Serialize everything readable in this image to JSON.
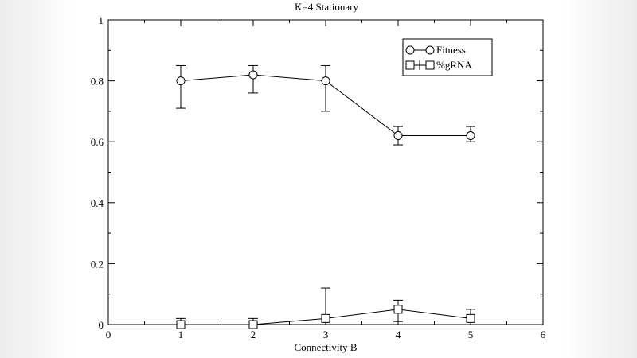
{
  "chart_data": {
    "type": "line",
    "title": "K=4 Stationary",
    "xlabel": "Connectivity B",
    "ylabel": "",
    "xlim": [
      0,
      6
    ],
    "ylim": [
      0,
      1
    ],
    "xticks": [
      0,
      1,
      2,
      3,
      4,
      5,
      6
    ],
    "yticks": [
      0,
      0.2,
      0.4,
      0.6,
      0.8,
      1
    ],
    "ytick_labels": [
      "0",
      "0.2",
      "0.4",
      "0.6",
      "0.8",
      "1"
    ],
    "legend_position": "top-right",
    "grid": false,
    "series": [
      {
        "name": "Fitness",
        "marker": "circle",
        "x": [
          1,
          2,
          3,
          4,
          5
        ],
        "y": [
          0.8,
          0.82,
          0.8,
          0.62,
          0.62
        ],
        "err_low": [
          0.71,
          0.76,
          0.7,
          0.59,
          0.6
        ],
        "err_high": [
          0.85,
          0.85,
          0.85,
          0.65,
          0.65
        ]
      },
      {
        "name": "%gRNA",
        "marker": "square",
        "x": [
          1,
          2,
          3,
          4,
          5
        ],
        "y": [
          0.0,
          0.0,
          0.02,
          0.05,
          0.02
        ],
        "err_low": [
          0.0,
          0.0,
          0.0,
          0.01,
          0.0
        ],
        "err_high": [
          0.02,
          0.02,
          0.12,
          0.08,
          0.05
        ]
      }
    ],
    "colors": {
      "line": "#000000",
      "background": "#ffffff"
    }
  }
}
